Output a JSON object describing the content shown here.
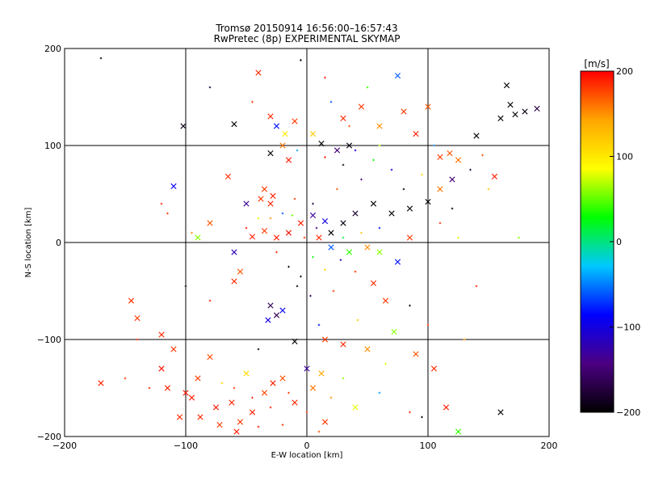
{
  "chart_data": {
    "type": "scatter",
    "title_line1": "Tromsø 20150914 16:56:00–16:57:43",
    "title_line2": "RwPretec (8p) EXPERIMENTAL SKYMAP",
    "xlabel": "E-W location [km]",
    "ylabel": "N-S location [km]",
    "xlim": [
      -200,
      200
    ],
    "ylim": [
      -200,
      200
    ],
    "xticks": [
      "−200",
      "−100",
      "0",
      "100",
      "200"
    ],
    "xtick_values": [
      -200,
      -100,
      0,
      100,
      200
    ],
    "yticks": [
      "200",
      "100",
      "0",
      "−100",
      "−200"
    ],
    "ytick_values": [
      200,
      100,
      0,
      -100,
      -200
    ],
    "grid_values": [
      -100,
      0,
      100
    ],
    "grid": true,
    "colorbar": {
      "label": "[m/s]",
      "range": [
        -200,
        200
      ],
      "ticks": [
        "200",
        "100",
        "0",
        "−100",
        "−200"
      ],
      "tick_values": [
        200,
        100,
        0,
        -100,
        -200
      ],
      "colors": [
        "#000000",
        "#4b0082",
        "#0000ff",
        "#00c8ff",
        "#00ff00",
        "#ffff00",
        "#ffa500",
        "#ff0000"
      ]
    },
    "series": [
      {
        "name": "cross-markers",
        "marker": "x",
        "points": [
          {
            "x": -170,
            "y": -145,
            "v": 190
          },
          {
            "x": -145,
            "y": -60,
            "v": 185
          },
          {
            "x": -140,
            "y": -78,
            "v": 180
          },
          {
            "x": -120,
            "y": -130,
            "v": 195
          },
          {
            "x": -115,
            "y": -150,
            "v": 190
          },
          {
            "x": -105,
            "y": -180,
            "v": 185
          },
          {
            "x": -95,
            "y": -160,
            "v": 190
          },
          {
            "x": -90,
            "y": -140,
            "v": 180
          },
          {
            "x": -75,
            "y": -170,
            "v": 190
          },
          {
            "x": -62,
            "y": -165,
            "v": 185
          },
          {
            "x": -55,
            "y": -185,
            "v": 180
          },
          {
            "x": -45,
            "y": -175,
            "v": 190
          },
          {
            "x": -35,
            "y": -155,
            "v": 175
          },
          {
            "x": -20,
            "y": -140,
            "v": 170
          },
          {
            "x": -10,
            "y": -165,
            "v": 185
          },
          {
            "x": 5,
            "y": -150,
            "v": 160
          },
          {
            "x": 15,
            "y": -185,
            "v": 180
          },
          {
            "x": 40,
            "y": -170,
            "v": 80
          },
          {
            "x": 125,
            "y": -195,
            "v": 40
          },
          {
            "x": 160,
            "y": -175,
            "v": -200
          },
          {
            "x": 12,
            "y": -135,
            "v": 140
          },
          {
            "x": -50,
            "y": -135,
            "v": 110
          },
          {
            "x": -28,
            "y": -145,
            "v": 190
          },
          {
            "x": 0,
            "y": -130,
            "v": -130
          },
          {
            "x": -110,
            "y": 58,
            "v": -90
          },
          {
            "x": -102,
            "y": 120,
            "v": -190
          },
          {
            "x": -60,
            "y": 122,
            "v": -200
          },
          {
            "x": -40,
            "y": 175,
            "v": 185
          },
          {
            "x": -30,
            "y": 130,
            "v": 185
          },
          {
            "x": -25,
            "y": 120,
            "v": -80
          },
          {
            "x": -18,
            "y": 112,
            "v": 100
          },
          {
            "x": -10,
            "y": 125,
            "v": 180
          },
          {
            "x": 5,
            "y": 112,
            "v": 120
          },
          {
            "x": 12,
            "y": 102,
            "v": -200
          },
          {
            "x": 25,
            "y": 95,
            "v": -150
          },
          {
            "x": 35,
            "y": 100,
            "v": -190
          },
          {
            "x": -20,
            "y": 100,
            "v": 160
          },
          {
            "x": -30,
            "y": 92,
            "v": -200
          },
          {
            "x": -15,
            "y": 85,
            "v": 190
          },
          {
            "x": 30,
            "y": 128,
            "v": 185
          },
          {
            "x": 45,
            "y": 140,
            "v": 180
          },
          {
            "x": 60,
            "y": 120,
            "v": 150
          },
          {
            "x": 75,
            "y": 172,
            "v": -60
          },
          {
            "x": 80,
            "y": 135,
            "v": 180
          },
          {
            "x": 90,
            "y": 112,
            "v": 190
          },
          {
            "x": 100,
            "y": 140,
            "v": 170
          },
          {
            "x": 110,
            "y": 88,
            "v": 180
          },
          {
            "x": 118,
            "y": 92,
            "v": 170
          },
          {
            "x": 125,
            "y": 85,
            "v": 160
          },
          {
            "x": 140,
            "y": 110,
            "v": -200
          },
          {
            "x": 165,
            "y": 162,
            "v": -200
          },
          {
            "x": 168,
            "y": 142,
            "v": -200
          },
          {
            "x": 172,
            "y": 132,
            "v": -200
          },
          {
            "x": 160,
            "y": 128,
            "v": -200
          },
          {
            "x": 180,
            "y": 135,
            "v": -190
          },
          {
            "x": 190,
            "y": 138,
            "v": -170
          },
          {
            "x": 155,
            "y": 68,
            "v": 190
          },
          {
            "x": 110,
            "y": 55,
            "v": 160
          },
          {
            "x": 120,
            "y": 65,
            "v": -150
          },
          {
            "x": 100,
            "y": 42,
            "v": -200
          },
          {
            "x": 85,
            "y": 35,
            "v": -200
          },
          {
            "x": 70,
            "y": 30,
            "v": -200
          },
          {
            "x": 55,
            "y": 40,
            "v": -200
          },
          {
            "x": 40,
            "y": 30,
            "v": -180
          },
          {
            "x": 30,
            "y": 20,
            "v": -190
          },
          {
            "x": 20,
            "y": 10,
            "v": -200
          },
          {
            "x": 15,
            "y": 22,
            "v": -100
          },
          {
            "x": 5,
            "y": 28,
            "v": -130
          },
          {
            "x": -5,
            "y": 20,
            "v": 190
          },
          {
            "x": -15,
            "y": 10,
            "v": 195
          },
          {
            "x": -25,
            "y": 5,
            "v": 190
          },
          {
            "x": -35,
            "y": 12,
            "v": 180
          },
          {
            "x": -45,
            "y": 6,
            "v": 190
          },
          {
            "x": 10,
            "y": 5,
            "v": 185
          },
          {
            "x": 20,
            "y": -5,
            "v": -60
          },
          {
            "x": 35,
            "y": -10,
            "v": 40
          },
          {
            "x": 50,
            "y": -5,
            "v": 150
          },
          {
            "x": 60,
            "y": -10,
            "v": 60
          },
          {
            "x": 75,
            "y": -20,
            "v": -80
          },
          {
            "x": 85,
            "y": 5,
            "v": 180
          },
          {
            "x": -35,
            "y": 55,
            "v": 180
          },
          {
            "x": -28,
            "y": 48,
            "v": 190
          },
          {
            "x": -30,
            "y": 40,
            "v": 185
          },
          {
            "x": -38,
            "y": 45,
            "v": 180
          },
          {
            "x": -50,
            "y": 40,
            "v": -130
          },
          {
            "x": -65,
            "y": 68,
            "v": 185
          },
          {
            "x": -80,
            "y": 20,
            "v": 170
          },
          {
            "x": -90,
            "y": 5,
            "v": 60
          },
          {
            "x": -60,
            "y": -10,
            "v": -120
          },
          {
            "x": -55,
            "y": -30,
            "v": 170
          },
          {
            "x": -60,
            "y": -40,
            "v": 185
          },
          {
            "x": -30,
            "y": -65,
            "v": -160
          },
          {
            "x": -25,
            "y": -75,
            "v": -160
          },
          {
            "x": -32,
            "y": -80,
            "v": -100
          },
          {
            "x": -20,
            "y": -70,
            "v": -90
          },
          {
            "x": -10,
            "y": -102,
            "v": -200
          },
          {
            "x": 15,
            "y": -100,
            "v": 180
          },
          {
            "x": 30,
            "y": -105,
            "v": 185
          },
          {
            "x": 50,
            "y": -110,
            "v": 150
          },
          {
            "x": 55,
            "y": -42,
            "v": 185
          },
          {
            "x": 65,
            "y": -60,
            "v": 180
          },
          {
            "x": 72,
            "y": -92,
            "v": 60
          },
          {
            "x": 90,
            "y": -115,
            "v": 170
          },
          {
            "x": 105,
            "y": -130,
            "v": 185
          },
          {
            "x": 115,
            "y": -170,
            "v": 190
          },
          {
            "x": -120,
            "y": -95,
            "v": 185
          },
          {
            "x": -110,
            "y": -110,
            "v": 180
          },
          {
            "x": -80,
            "y": -118,
            "v": 175
          },
          {
            "x": -100,
            "y": -155,
            "v": 190
          },
          {
            "x": -88,
            "y": -180,
            "v": 185
          },
          {
            "x": -72,
            "y": -188,
            "v": 180
          },
          {
            "x": -58,
            "y": -195,
            "v": 190
          }
        ]
      },
      {
        "name": "plus-markers",
        "marker": "+",
        "points": [
          {
            "x": -170,
            "y": 190,
            "v": -200
          },
          {
            "x": -80,
            "y": 160,
            "v": -180
          },
          {
            "x": -45,
            "y": 145,
            "v": 180
          },
          {
            "x": -5,
            "y": 188,
            "v": -190
          },
          {
            "x": 15,
            "y": 170,
            "v": 190
          },
          {
            "x": 20,
            "y": 145,
            "v": -60
          },
          {
            "x": 50,
            "y": 160,
            "v": 40
          },
          {
            "x": 35,
            "y": 120,
            "v": 170
          },
          {
            "x": -120,
            "y": 40,
            "v": 185
          },
          {
            "x": -115,
            "y": 30,
            "v": 180
          },
          {
            "x": -95,
            "y": 10,
            "v": 150
          },
          {
            "x": -100,
            "y": -45,
            "v": -200
          },
          {
            "x": -80,
            "y": -60,
            "v": 190
          },
          {
            "x": -40,
            "y": -110,
            "v": -190
          },
          {
            "x": 10,
            "y": -85,
            "v": -80
          },
          {
            "x": 22,
            "y": -50,
            "v": 180
          },
          {
            "x": 42,
            "y": -80,
            "v": 120
          },
          {
            "x": 65,
            "y": -125,
            "v": 80
          },
          {
            "x": 85,
            "y": -65,
            "v": -200
          },
          {
            "x": 100,
            "y": -85,
            "v": 185
          },
          {
            "x": 130,
            "y": -100,
            "v": 150
          },
          {
            "x": 140,
            "y": -45,
            "v": 190
          },
          {
            "x": 175,
            "y": 5,
            "v": 60
          },
          {
            "x": 150,
            "y": 55,
            "v": 120
          },
          {
            "x": 135,
            "y": 75,
            "v": -180
          },
          {
            "x": 145,
            "y": 90,
            "v": 170
          },
          {
            "x": 105,
            "y": 100,
            "v": -50
          },
          {
            "x": 95,
            "y": 70,
            "v": 110
          },
          {
            "x": 80,
            "y": 55,
            "v": -200
          },
          {
            "x": 70,
            "y": 75,
            "v": -100
          },
          {
            "x": 55,
            "y": 85,
            "v": 30
          },
          {
            "x": 45,
            "y": 65,
            "v": -150
          },
          {
            "x": 25,
            "y": 55,
            "v": 170
          },
          {
            "x": 5,
            "y": 40,
            "v": -170
          },
          {
            "x": -10,
            "y": 45,
            "v": 180
          },
          {
            "x": -20,
            "y": 30,
            "v": -60
          },
          {
            "x": -30,
            "y": 25,
            "v": 150
          },
          {
            "x": -40,
            "y": 25,
            "v": 80
          },
          {
            "x": -50,
            "y": 15,
            "v": 190
          },
          {
            "x": -25,
            "y": -10,
            "v": 185
          },
          {
            "x": -15,
            "y": -25,
            "v": -200
          },
          {
            "x": -5,
            "y": -35,
            "v": -190
          },
          {
            "x": 5,
            "y": -15,
            "v": 30
          },
          {
            "x": 15,
            "y": -28,
            "v": 110
          },
          {
            "x": 28,
            "y": -18,
            "v": -120
          },
          {
            "x": 40,
            "y": -30,
            "v": 185
          },
          {
            "x": -8,
            "y": -45,
            "v": -200
          },
          {
            "x": 3,
            "y": -55,
            "v": -160
          },
          {
            "x": -60,
            "y": -150,
            "v": 180
          },
          {
            "x": -45,
            "y": -160,
            "v": 185
          },
          {
            "x": -30,
            "y": -170,
            "v": 190
          },
          {
            "x": -15,
            "y": -155,
            "v": 180
          },
          {
            "x": 0,
            "y": -175,
            "v": 185
          },
          {
            "x": 20,
            "y": -160,
            "v": 150
          },
          {
            "x": 30,
            "y": -140,
            "v": 60
          },
          {
            "x": -70,
            "y": -145,
            "v": 110
          },
          {
            "x": -40,
            "y": -190,
            "v": 190
          },
          {
            "x": -20,
            "y": -188,
            "v": 180
          },
          {
            "x": 10,
            "y": -195,
            "v": 175
          },
          {
            "x": 60,
            "y": -155,
            "v": -40
          },
          {
            "x": 85,
            "y": -175,
            "v": 185
          },
          {
            "x": 95,
            "y": -180,
            "v": -200
          },
          {
            "x": -140,
            "y": -100,
            "v": 190
          },
          {
            "x": -130,
            "y": -150,
            "v": 185
          },
          {
            "x": -150,
            "y": -140,
            "v": 180
          },
          {
            "x": 30,
            "y": 80,
            "v": -190
          },
          {
            "x": 40,
            "y": 95,
            "v": -100
          },
          {
            "x": 15,
            "y": 88,
            "v": 190
          },
          {
            "x": -8,
            "y": 95,
            "v": -40
          },
          {
            "x": 60,
            "y": 100,
            "v": 70
          },
          {
            "x": 110,
            "y": 20,
            "v": 185
          },
          {
            "x": 120,
            "y": 35,
            "v": -200
          },
          {
            "x": 125,
            "y": 5,
            "v": 80
          },
          {
            "x": 30,
            "y": 5,
            "v": 10
          },
          {
            "x": -2,
            "y": 5,
            "v": 185
          },
          {
            "x": 8,
            "y": 15,
            "v": -150
          },
          {
            "x": 45,
            "y": 10,
            "v": 120
          },
          {
            "x": 60,
            "y": 15,
            "v": -80
          },
          {
            "x": -12,
            "y": 28,
            "v": 50
          }
        ]
      }
    ]
  }
}
